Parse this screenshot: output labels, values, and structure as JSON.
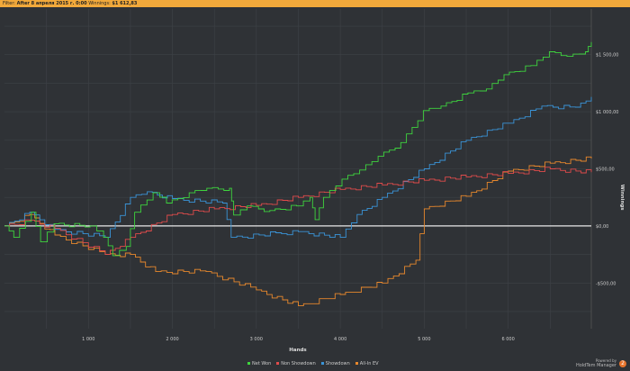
{
  "header": {
    "filter_label": "Filter:",
    "filter_value": "After 8 апреля 2015 г. 0:00",
    "winnings_label": "Winnings:",
    "winnings_value": "$1 612,83"
  },
  "branding": {
    "line1": "Powered by",
    "line2": "HoldTem Manager",
    "logo": "2"
  },
  "chart_data": {
    "type": "line",
    "xlabel": "Hands",
    "ylabel": "Winnings",
    "xlim": [
      0,
      6990
    ],
    "ylim": [
      -900,
      1900
    ],
    "xticks": [
      1000,
      2000,
      3000,
      4000,
      5000,
      6000
    ],
    "xtick_labels": [
      "1 000",
      "2 000",
      "3 000",
      "4 000",
      "5 000",
      "6 000"
    ],
    "yticks": [
      -500,
      0,
      500,
      1000,
      1500
    ],
    "ytick_labels": [
      "-$500,00",
      "$0,00",
      "$500,00",
      "$1 000,00",
      "$1 500,00"
    ],
    "grid": true,
    "legend": "bottom",
    "series": [
      {
        "name": "Net Won",
        "color": "#3ed43e",
        "points": [
          [
            0,
            0
          ],
          [
            110,
            -100
          ],
          [
            320,
            120
          ],
          [
            430,
            -140
          ],
          [
            590,
            20
          ],
          [
            1020,
            0
          ],
          [
            1180,
            -100
          ],
          [
            1290,
            -260
          ],
          [
            1450,
            -180
          ],
          [
            1550,
            120
          ],
          [
            1770,
            290
          ],
          [
            1930,
            200
          ],
          [
            2200,
            290
          ],
          [
            2410,
            330
          ],
          [
            2680,
            330
          ],
          [
            2730,
            95
          ],
          [
            2890,
            175
          ],
          [
            3160,
            135
          ],
          [
            3480,
            175
          ],
          [
            3640,
            250
          ],
          [
            3700,
            55
          ],
          [
            3800,
            250
          ],
          [
            4020,
            410
          ],
          [
            4230,
            490
          ],
          [
            4450,
            610
          ],
          [
            4720,
            730
          ],
          [
            4990,
            1010
          ],
          [
            5200,
            1050
          ],
          [
            5520,
            1165
          ],
          [
            5740,
            1200
          ],
          [
            5950,
            1325
          ],
          [
            6270,
            1405
          ],
          [
            6490,
            1525
          ],
          [
            6700,
            1485
          ],
          [
            6920,
            1525
          ],
          [
            6990,
            1610
          ]
        ]
      },
      {
        "name": "Non Showdown",
        "color": "#e04b4b",
        "points": [
          [
            0,
            0
          ],
          [
            300,
            50
          ],
          [
            600,
            -20
          ],
          [
            1200,
            -250
          ],
          [
            1500,
            -100
          ],
          [
            2000,
            100
          ],
          [
            2500,
            150
          ],
          [
            3000,
            180
          ],
          [
            3500,
            250
          ],
          [
            4000,
            320
          ],
          [
            4500,
            360
          ],
          [
            5000,
            400
          ],
          [
            5500,
            430
          ],
          [
            6000,
            460
          ],
          [
            6500,
            500
          ],
          [
            6990,
            470
          ]
        ]
      },
      {
        "name": "Showdown",
        "color": "#3a94d8",
        "points": [
          [
            0,
            0
          ],
          [
            300,
            120
          ],
          [
            600,
            -30
          ],
          [
            1200,
            -100
          ],
          [
            1500,
            250
          ],
          [
            1700,
            300
          ],
          [
            2000,
            240
          ],
          [
            2600,
            200
          ],
          [
            2700,
            -100
          ],
          [
            3500,
            -50
          ],
          [
            4000,
            -100
          ],
          [
            4200,
            100
          ],
          [
            4500,
            250
          ],
          [
            5000,
            500
          ],
          [
            5500,
            750
          ],
          [
            6000,
            900
          ],
          [
            6400,
            1050
          ],
          [
            6800,
            1040
          ],
          [
            6990,
            1130
          ]
        ]
      },
      {
        "name": "All-In EV",
        "color": "#e8882c",
        "points": [
          [
            0,
            0
          ],
          [
            300,
            100
          ],
          [
            600,
            -80
          ],
          [
            1200,
            -250
          ],
          [
            1500,
            -250
          ],
          [
            1800,
            -400
          ],
          [
            2400,
            -400
          ],
          [
            3000,
            -560
          ],
          [
            3500,
            -700
          ],
          [
            4000,
            -600
          ],
          [
            4500,
            -500
          ],
          [
            4900,
            -300
          ],
          [
            5000,
            150
          ],
          [
            5500,
            260
          ],
          [
            6000,
            480
          ],
          [
            6500,
            550
          ],
          [
            6990,
            590
          ]
        ]
      }
    ]
  }
}
